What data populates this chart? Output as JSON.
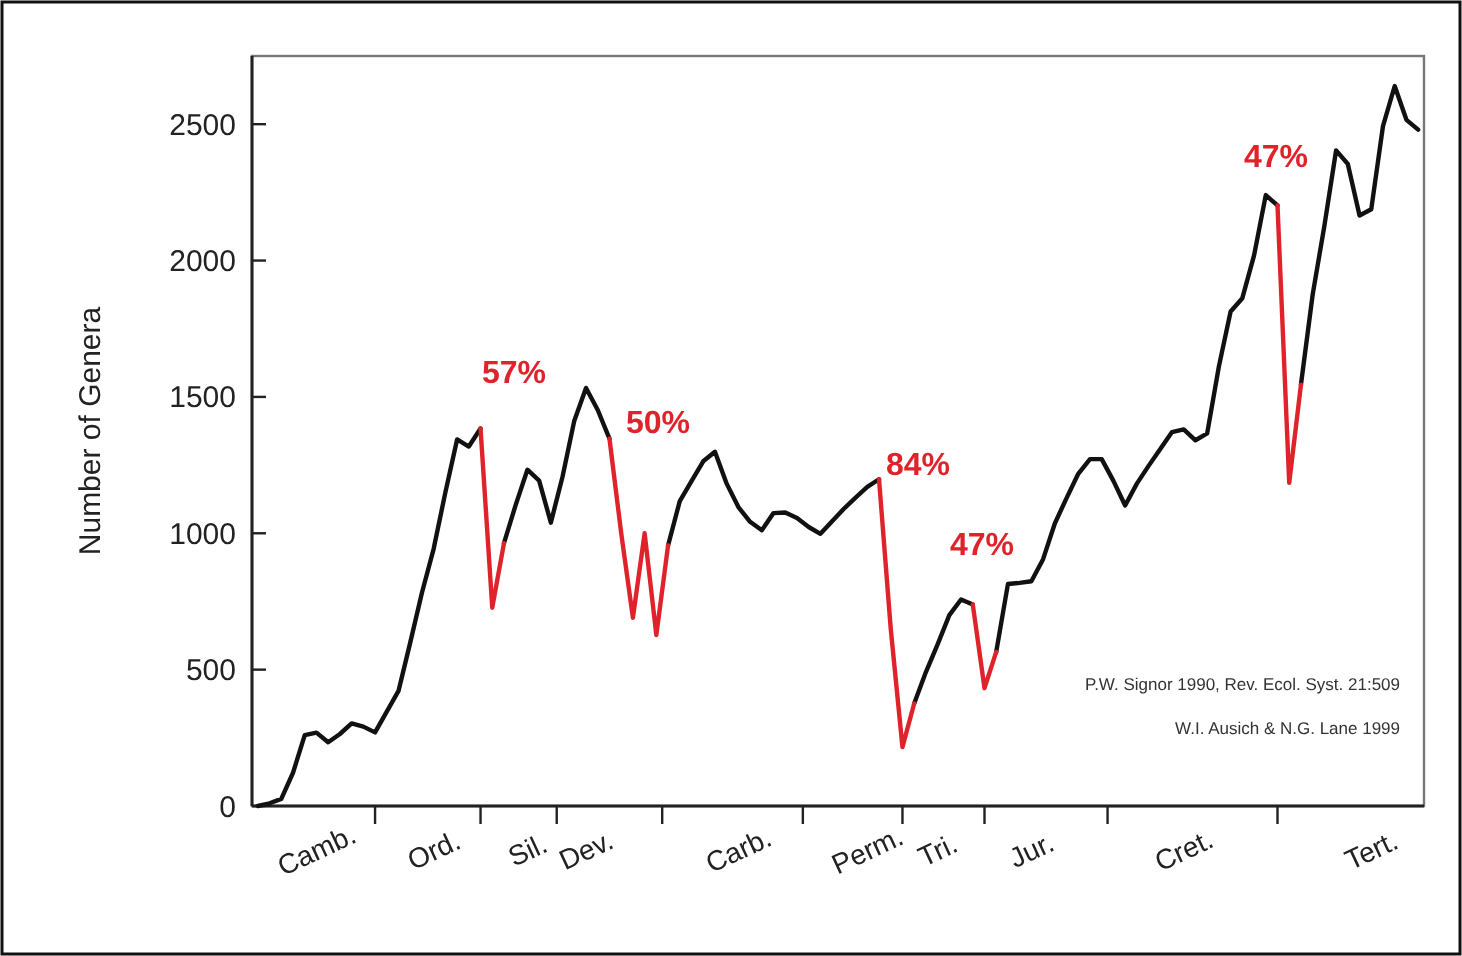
{
  "chart_data": {
    "type": "line",
    "ylabel": "Number of Genera",
    "ylim": [
      0,
      2750
    ],
    "yticks": [
      0,
      500,
      1000,
      1500,
      2000,
      2500
    ],
    "categories": [
      null,
      null,
      null,
      null,
      null,
      "Camb.",
      null,
      null,
      null,
      null,
      null,
      null,
      null,
      null,
      null,
      "Ord.",
      null,
      null,
      null,
      null,
      null,
      null,
      null,
      "Sil.",
      null,
      null,
      null,
      null,
      "Dev.",
      null,
      null,
      null,
      null,
      null,
      null,
      null,
      null,
      null,
      null,
      null,
      null,
      "Carb.",
      null,
      null,
      null,
      null,
      null,
      null,
      null,
      null,
      null,
      null,
      "Perm.",
      null,
      null,
      null,
      null,
      null,
      "Tri.",
      null,
      null,
      null,
      null,
      null,
      null,
      null,
      "Jur.",
      null,
      null,
      null,
      null,
      null,
      null,
      null,
      null,
      null,
      null,
      null,
      null,
      "Cret.",
      null,
      null,
      null,
      null,
      null,
      null,
      null,
      null,
      null,
      null,
      null,
      null,
      null,
      null,
      null,
      "Tert.",
      null,
      null,
      null,
      null
    ],
    "grid": false,
    "marker": "none",
    "line_style": "solid",
    "series": [
      {
        "color": "#111111",
        "values": [
          0,
          10,
          26,
          122,
          260,
          269,
          234,
          264,
          303,
          291,
          270,
          346,
          422,
          599,
          782,
          943,
          1150,
          1344,
          1318,
          1384,
          null,
          964,
          1104,
          1233,
          1193,
          1039,
          1208,
          1413,
          1533,
          1452,
          1347,
          null,
          null,
          null,
          null,
          955,
          1118,
          1191,
          1264,
          1299,
          1182,
          1096,
          1042,
          1011,
          1074,
          1076,
          1056,
          1023,
          998,
          1044,
          1090,
          1131,
          1170,
          1198,
          null,
          null,
          376,
          491,
          593,
          700,
          757,
          739,
          null,
          565,
          814,
          818,
          824,
          905,
          1036,
          1129,
          1218,
          1272,
          1272,
          1192,
          1102,
          1182,
          1247,
          1309,
          1371,
          1381,
          1341,
          1366,
          1612,
          1813,
          1862,
          2019,
          2240,
          2202,
          null,
          1545,
          1875,
          2127,
          2404,
          2354,
          2165,
          2188,
          2493,
          2640,
          2516,
          2480
        ]
      },
      {
        "color": "#e0232b",
        "values": [
          null,
          null,
          null,
          null,
          null,
          null,
          null,
          null,
          null,
          null,
          null,
          null,
          null,
          null,
          null,
          null,
          null,
          null,
          null,
          1384,
          727,
          964,
          null,
          null,
          null,
          null,
          null,
          null,
          null,
          null,
          1347,
          1001,
          690,
          1000,
          627,
          955,
          null,
          null,
          null,
          null,
          null,
          null,
          null,
          null,
          null,
          null,
          null,
          null,
          null,
          null,
          null,
          null,
          null,
          1198,
          650,
          216,
          376,
          null,
          null,
          null,
          null,
          739,
          432,
          565,
          null,
          null,
          null,
          null,
          null,
          null,
          null,
          null,
          null,
          null,
          null,
          null,
          null,
          null,
          null,
          null,
          null,
          null,
          null,
          null,
          null,
          null,
          null,
          2202,
          1185,
          1545,
          null,
          null,
          null,
          null,
          null,
          null,
          null,
          null,
          null,
          null
        ]
      }
    ],
    "annotations": [
      "57%",
      "50%",
      "84%",
      "47%",
      "47%",
      "P.W. Signor 1990, Rev. Ecol. Syst. 21:509",
      "W.I. Ausich & N.G. Lane 1999"
    ]
  }
}
